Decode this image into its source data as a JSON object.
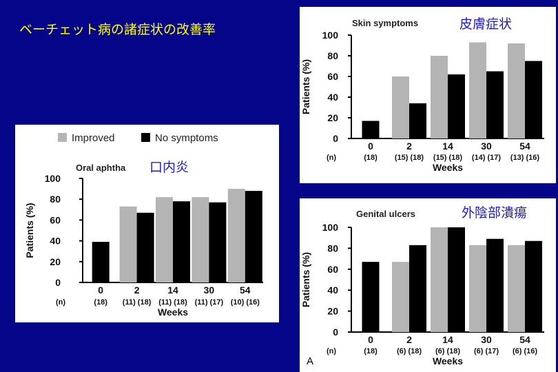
{
  "slide": {
    "title": "ベーチェット病の諸症状の改善率",
    "footnote": "A"
  },
  "colors": {
    "background": "#05058a",
    "title": "#ffff00",
    "improved": "#b4b4b4",
    "no_symptoms": "#000000",
    "label_jp": "#1b1bd6"
  },
  "legend": {
    "items": [
      {
        "label": "Improved",
        "color": "#b4b4b4"
      },
      {
        "label": "No symptoms",
        "color": "#000000"
      }
    ]
  },
  "chart_data": [
    {
      "id": "oral",
      "type": "bar",
      "title": "Oral aphtha",
      "title_jp": "口内炎",
      "xlabel": "Weeks",
      "ylabel": "Patients (%)",
      "ylim": [
        0,
        100
      ],
      "yticks": [
        0,
        20,
        40,
        60,
        80,
        100
      ],
      "n_label": "(n)",
      "categories": [
        "0",
        "2",
        "14",
        "30",
        "54"
      ],
      "n_values": [
        "(18)",
        "(11) (18)",
        "(11) (18)",
        "(11) (17)",
        "(10) (16)"
      ],
      "series": [
        {
          "name": "Improved",
          "values": [
            null,
            73,
            82,
            82,
            90
          ]
        },
        {
          "name": "No symptoms",
          "values": [
            39,
            67,
            78,
            77,
            88
          ]
        }
      ]
    },
    {
      "id": "skin",
      "type": "bar",
      "title": "Skin symptoms",
      "title_jp": "皮膚症状",
      "xlabel": "Weeks",
      "ylabel": "Patients (%)",
      "ylim": [
        0,
        100
      ],
      "yticks": [
        0,
        20,
        40,
        60,
        80,
        100
      ],
      "n_label": "(n)",
      "categories": [
        "0",
        "2",
        "14",
        "30",
        "54"
      ],
      "n_values": [
        "(18)",
        "(15) (18)",
        "(15) (18)",
        "(14) (17)",
        "(13) (16)"
      ],
      "series": [
        {
          "name": "Improved",
          "values": [
            null,
            60,
            80,
            93,
            92
          ]
        },
        {
          "name": "No symptoms",
          "values": [
            17,
            34,
            62,
            65,
            75
          ]
        }
      ]
    },
    {
      "id": "genital",
      "type": "bar",
      "title": "Genital ulcers",
      "title_jp": "外陰部潰瘍",
      "xlabel": "Weeks",
      "ylabel": "Patients (%)",
      "ylim": [
        0,
        100
      ],
      "yticks": [
        0,
        20,
        40,
        60,
        80,
        100
      ],
      "n_label": "(n)",
      "categories": [
        "0",
        "2",
        "14",
        "30",
        "54"
      ],
      "n_values": [
        "(18)",
        "(6) (18)",
        "(6) (18)",
        "(6) (17)",
        "(6) (16)"
      ],
      "series": [
        {
          "name": "Improved",
          "values": [
            null,
            67,
            100,
            83,
            83
          ]
        },
        {
          "name": "No symptoms",
          "values": [
            67,
            83,
            100,
            89,
            87
          ]
        }
      ]
    }
  ]
}
